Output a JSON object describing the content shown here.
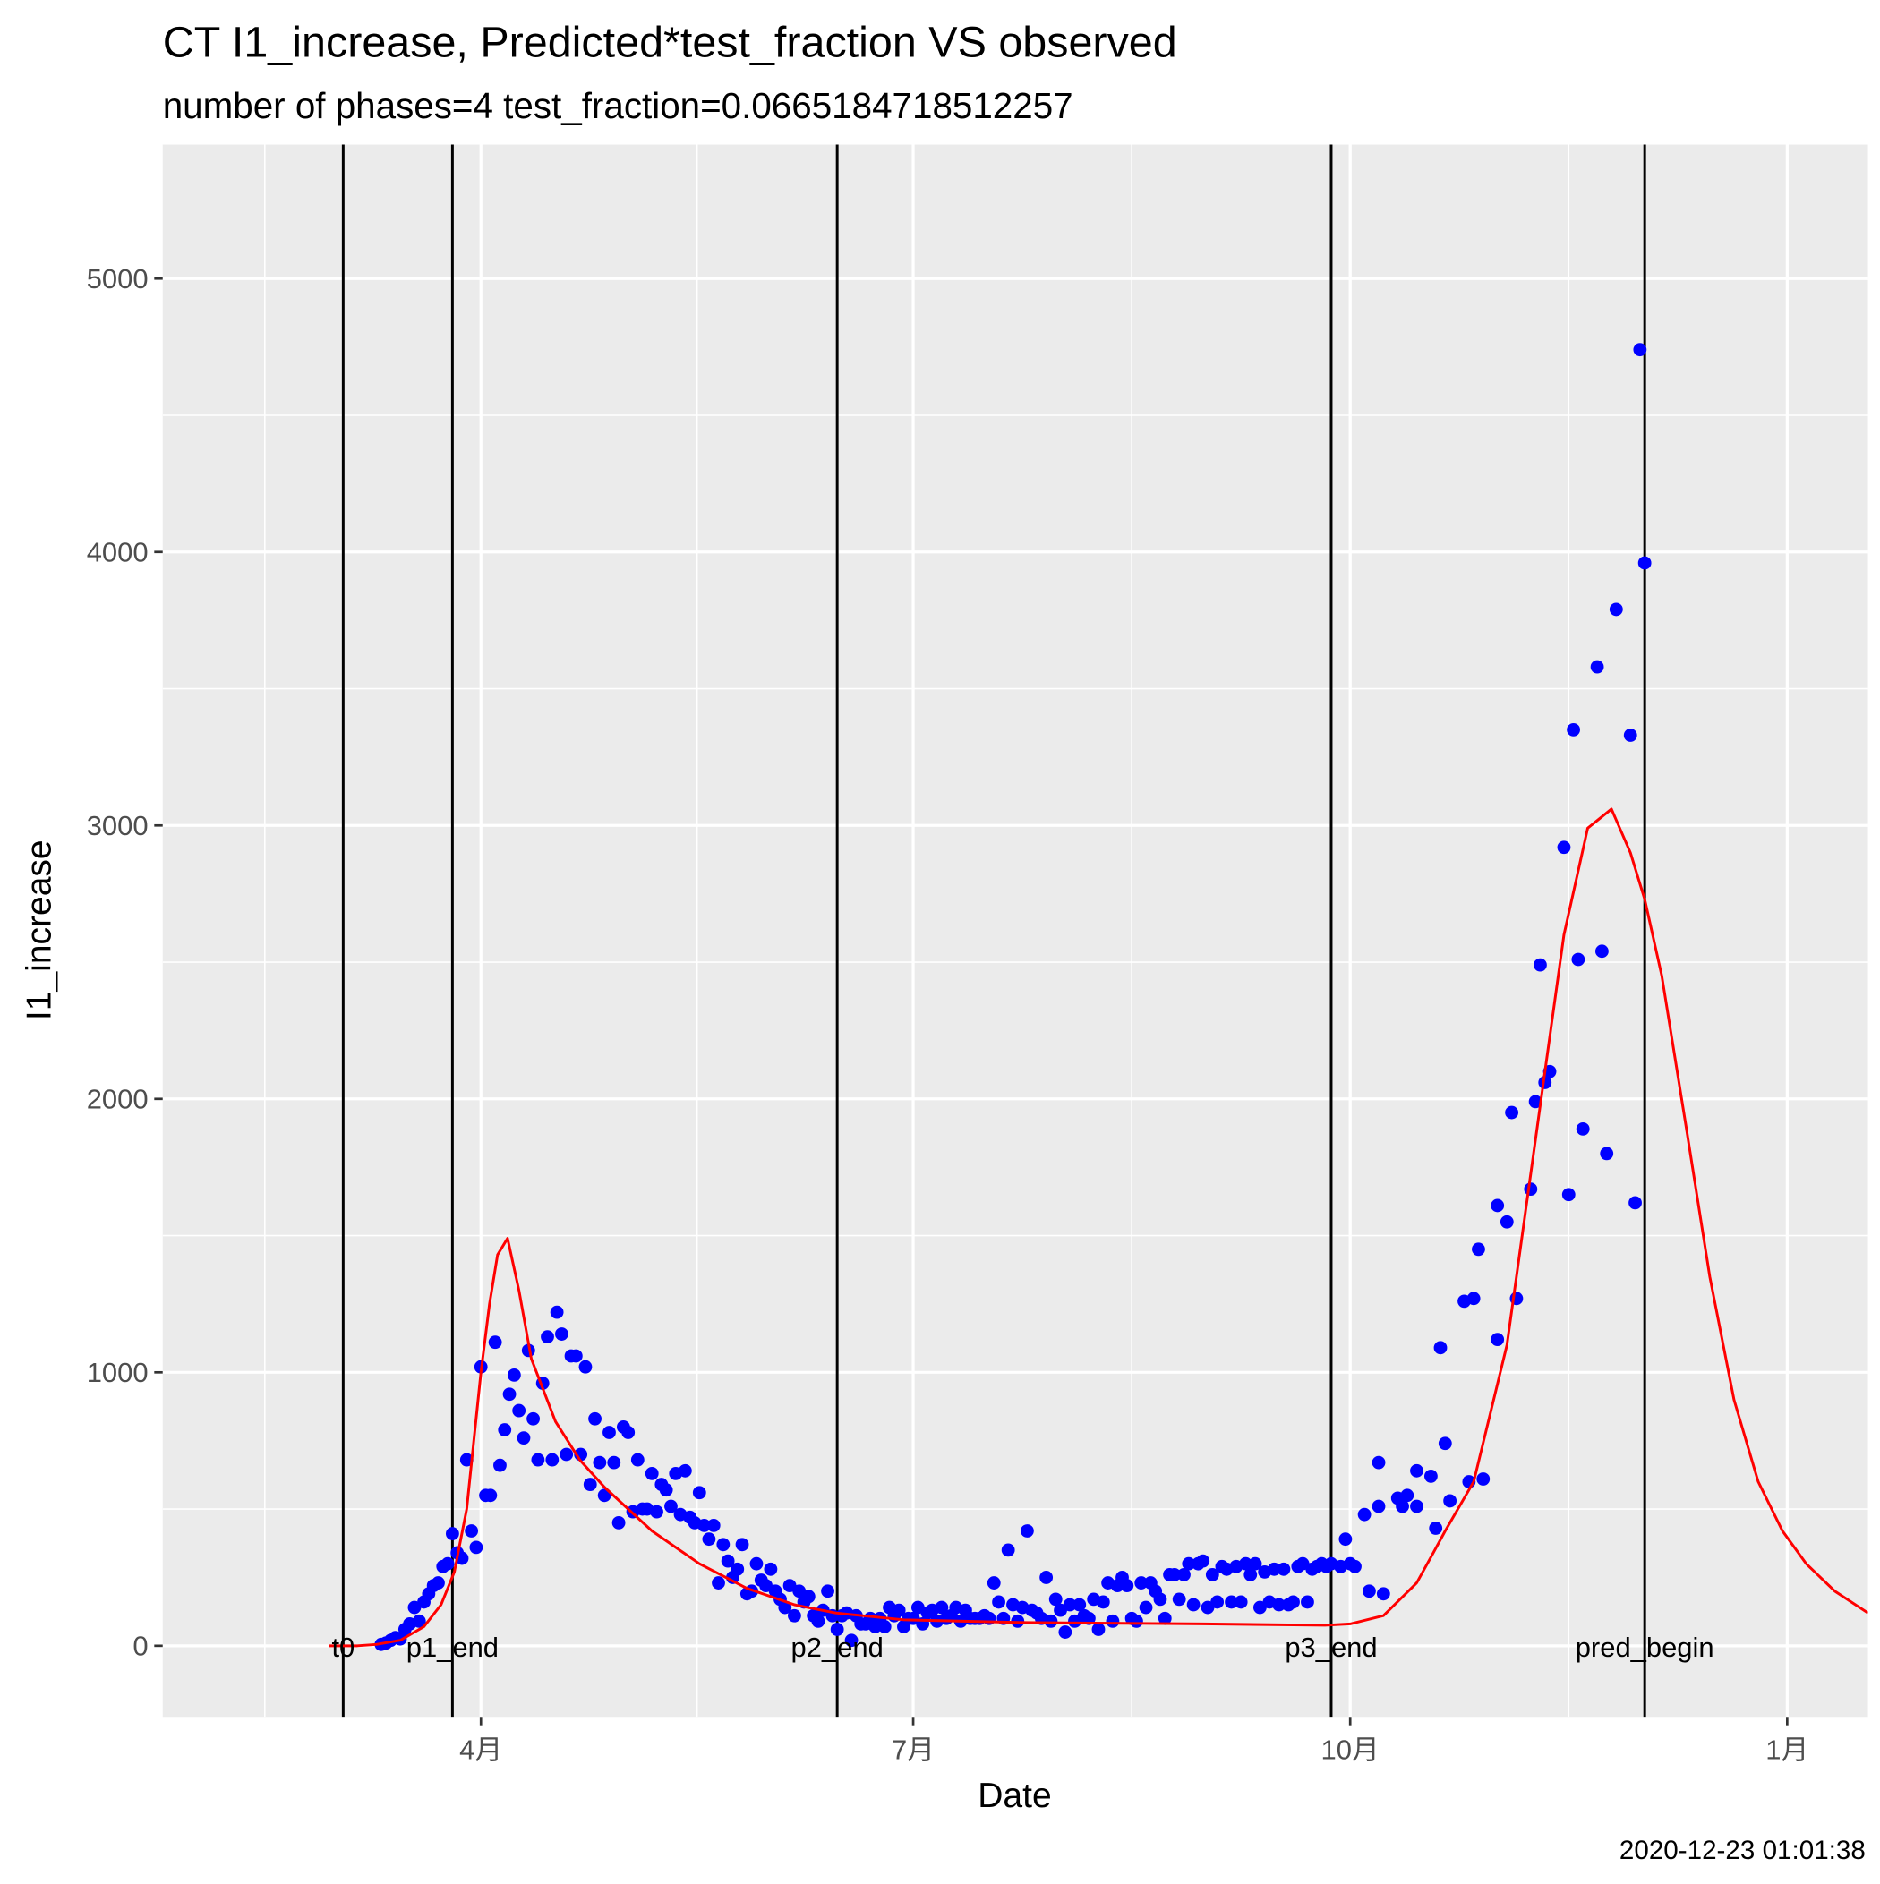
{
  "chart_data": {
    "type": "scatter",
    "title": "CT I1_increase, Predicted*test_fraction VS observed",
    "subtitle": "number of phases=4   test_fraction=0.0665184718512257",
    "x_label": "Date",
    "y_label": "I1_increase",
    "caption": "2020-12-23 01:01:38",
    "grid": true,
    "xlim": [
      24,
      383
    ],
    "ylim": [
      -260,
      5490
    ],
    "xticks": [
      {
        "value": 91,
        "label": "4月"
      },
      {
        "value": 182,
        "label": "7月"
      },
      {
        "value": 274,
        "label": "10月"
      },
      {
        "value": 366,
        "label": "1月"
      }
    ],
    "yticks": [
      0,
      1000,
      2000,
      3000,
      4000,
      5000
    ],
    "vlines": [
      {
        "x": 62,
        "label": "t0"
      },
      {
        "x": 85,
        "label": "p1_end"
      },
      {
        "x": 166,
        "label": "p2_end"
      },
      {
        "x": 270,
        "label": "p3_end"
      },
      {
        "x": 336,
        "label": "pred_begin"
      }
    ],
    "series": [
      {
        "type": "scatter",
        "color": "#0000ff",
        "x": [
          70,
          71,
          72,
          73,
          74,
          75,
          76,
          77,
          78,
          79,
          80,
          81,
          82,
          83,
          84,
          85,
          86,
          87,
          88,
          89,
          90,
          91,
          92,
          93,
          94,
          95,
          96,
          97,
          98,
          99,
          100,
          101,
          102,
          103,
          104,
          105,
          106,
          107,
          108,
          109,
          110,
          111,
          112,
          113,
          114,
          115,
          116,
          117,
          118,
          119,
          120,
          121,
          122,
          123,
          124,
          125,
          126,
          127,
          128,
          129,
          130,
          131,
          132,
          133,
          134,
          135,
          136,
          137,
          138,
          139,
          140,
          141,
          142,
          143,
          144,
          145,
          146,
          147,
          148,
          149,
          150,
          151,
          152,
          153,
          154,
          155,
          156,
          157,
          158,
          159,
          160,
          161,
          162,
          163,
          164,
          165,
          166,
          167,
          168,
          169,
          170,
          171,
          172,
          173,
          174,
          175,
          176,
          177,
          178,
          179,
          180,
          181,
          182,
          183,
          184,
          185,
          186,
          187,
          188,
          189,
          190,
          191,
          192,
          193,
          194,
          195,
          196,
          197,
          198,
          199,
          200,
          201,
          202,
          203,
          204,
          205,
          206,
          207,
          208,
          209,
          210,
          211,
          212,
          213,
          214,
          215,
          216,
          217,
          218,
          219,
          220,
          221,
          222,
          223,
          224,
          225,
          226,
          227,
          228,
          229,
          230,
          231,
          232,
          233,
          234,
          235,
          236,
          237,
          238,
          239,
          240,
          241,
          242,
          243,
          244,
          245,
          246,
          247,
          248,
          249,
          250,
          251,
          252,
          253,
          254,
          255,
          256,
          257,
          258,
          259,
          260,
          261,
          262,
          263,
          264,
          265,
          266,
          267,
          268,
          269,
          270,
          272,
          273,
          274,
          275,
          277,
          278,
          280,
          280,
          281,
          284,
          285,
          286,
          288,
          288,
          291,
          292,
          293,
          294,
          295,
          298,
          299,
          300,
          301,
          302,
          305,
          305,
          307,
          308,
          309,
          312,
          313,
          314,
          315,
          316,
          319,
          320,
          321,
          322,
          323,
          326,
          327,
          328,
          330,
          333,
          334,
          335,
          336
        ],
        "values": [
          5,
          10,
          20,
          30,
          25,
          60,
          80,
          140,
          90,
          160,
          190,
          220,
          230,
          290,
          300,
          410,
          340,
          320,
          680,
          420,
          360,
          1020,
          550,
          550,
          1110,
          660,
          790,
          920,
          990,
          860,
          760,
          1080,
          830,
          680,
          960,
          1130,
          680,
          1220,
          1140,
          700,
          1060,
          1060,
          700,
          1020,
          590,
          830,
          670,
          550,
          780,
          670,
          450,
          800,
          780,
          490,
          680,
          500,
          500,
          630,
          490,
          590,
          570,
          510,
          630,
          480,
          640,
          470,
          450,
          560,
          440,
          390,
          440,
          230,
          370,
          310,
          250,
          280,
          370,
          190,
          200,
          300,
          240,
          220,
          280,
          200,
          170,
          140,
          220,
          110,
          200,
          160,
          180,
          110,
          90,
          130,
          200,
          110,
          60,
          110,
          120,
          20,
          110,
          80,
          80,
          100,
          70,
          100,
          70,
          140,
          110,
          130,
          70,
          100,
          100,
          140,
          80,
          120,
          130,
          90,
          140,
          100,
          110,
          140,
          90,
          130,
          100,
          100,
          100,
          110,
          100,
          230,
          160,
          100,
          350,
          150,
          90,
          140,
          420,
          130,
          120,
          100,
          250,
          90,
          170,
          130,
          50,
          150,
          90,
          150,
          110,
          100,
          170,
          60,
          160,
          230,
          90,
          220,
          250,
          220,
          100,
          90,
          230,
          140,
          230,
          200,
          170,
          100,
          260,
          260,
          170,
          260,
          300,
          150,
          300,
          310,
          140,
          260,
          160,
          290,
          280,
          160,
          290,
          160,
          300,
          260,
          300,
          140,
          270,
          160,
          280,
          150,
          280,
          150,
          160,
          290,
          300,
          160,
          280,
          290,
          300,
          290,
          300,
          290,
          390,
          300,
          290,
          480,
          200,
          670,
          510,
          190,
          540,
          510,
          550,
          510,
          640,
          620,
          430,
          1090,
          740,
          530,
          1260,
          600,
          1270,
          1450,
          610,
          1610,
          1120,
          1550,
          1950,
          1270,
          1670,
          1990,
          2490,
          2060,
          2100,
          2920,
          1650,
          3350,
          2510,
          1890,
          3580,
          2540,
          1800,
          3790,
          3330,
          1620,
          4740,
          3960
        ]
      },
      {
        "type": "line",
        "color": "#ff0000",
        "x": [
          59,
          62,
          65,
          69,
          74,
          79,
          82.6,
          85.4,
          88,
          91,
          92.8,
          94.5,
          96.6,
          99,
          101.6,
          106.7,
          111.8,
          117,
          127,
          137,
          147,
          157,
          165.7,
          180,
          205,
          243,
          268.7,
          274,
          281,
          288,
          291.5,
          294,
          300,
          307,
          313,
          319,
          324,
          329,
          333,
          336,
          339.6,
          344.7,
          349.7,
          354.8,
          359.9,
          365,
          370,
          376,
          383
        ],
        "values": [
          0,
          0,
          0,
          5,
          20,
          70,
          150,
          270,
          500,
          1000,
          1250,
          1430,
          1490,
          1300,
          1050,
          820,
          680,
          580,
          420,
          300,
          210,
          150,
          120,
          95,
          85,
          80,
          75,
          80,
          110,
          230,
          340,
          420,
          600,
          1100,
          1850,
          2600,
          2990,
          3060,
          2900,
          2730,
          2450,
          1900,
          1350,
          900,
          600,
          420,
          300,
          200,
          120
        ]
      }
    ]
  }
}
